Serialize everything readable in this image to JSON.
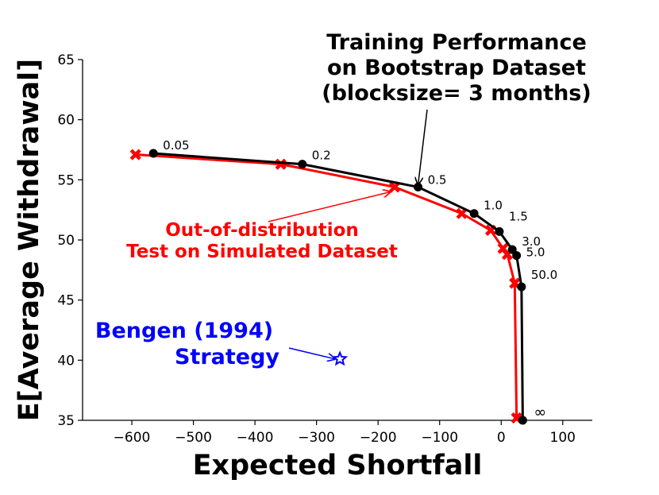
{
  "chart_data": {
    "type": "line",
    "xlabel": "Expected Shortfall",
    "ylabel": "E[Average Withdrawal]",
    "xlim": [
      -680,
      148
    ],
    "ylim": [
      35,
      65
    ],
    "xticks": [
      -600,
      -500,
      -400,
      -300,
      -200,
      -100,
      0,
      100
    ],
    "xtick_labels": [
      "−600",
      "−500",
      "−400",
      "−300",
      "−200",
      "−100",
      "0",
      "100"
    ],
    "yticks": [
      35,
      40,
      45,
      50,
      55,
      60,
      65
    ],
    "ytick_labels": [
      "35",
      "40",
      "45",
      "50",
      "55",
      "60",
      "65"
    ],
    "series": [
      {
        "name": "Training Performance on Bootstrap Dataset (blocksize= 3 months)",
        "color": "#000000",
        "marker": "circle",
        "x": [
          -565,
          -323,
          -135,
          -44,
          -3,
          18,
          25,
          33,
          35
        ],
        "y": [
          57.2,
          56.3,
          54.4,
          52.2,
          50.7,
          49.2,
          48.7,
          46.1,
          35.0
        ]
      },
      {
        "name": "Out-of-distribution Test on Simulated Dataset",
        "color": "#ff0000",
        "marker": "x",
        "x": [
          -594,
          -358,
          -173,
          -64,
          -17,
          3,
          10,
          22,
          25
        ],
        "y": [
          57.1,
          56.3,
          54.4,
          52.2,
          50.8,
          49.3,
          48.8,
          46.4,
          35.2
        ]
      }
    ],
    "point_labels": [
      {
        "text": "0.05",
        "x": -565,
        "y": 57.2
      },
      {
        "text": "0.2",
        "x": -323,
        "y": 56.3
      },
      {
        "text": "0.5",
        "x": -135,
        "y": 54.4
      },
      {
        "text": "1.0",
        "x": -44,
        "y": 52.2
      },
      {
        "text": "1.5",
        "x": -3,
        "y": 50.7
      },
      {
        "text": "3.0",
        "x": 18,
        "y": 49.2
      },
      {
        "text": "5.0",
        "x": 25,
        "y": 48.7
      },
      {
        "text": "50.0",
        "x": 33,
        "y": 46.1
      },
      {
        "text": "∞",
        "x": 35,
        "y": 35.0
      }
    ],
    "special_point": {
      "name": "Bengen (1994) Strategy",
      "x": -262,
      "y": 40.1,
      "color": "#0000ff",
      "marker": "star"
    },
    "annotations": [
      {
        "lines": [
          "Training Performance",
          "on Bootstrap Dataset",
          "(blocksize= 3 months)"
        ],
        "color": "#000000",
        "arrow_to": {
          "x": -135,
          "y": 54.6
        }
      },
      {
        "lines": [
          "Out-of-distribution",
          "Test on Simulated Dataset"
        ],
        "color": "#ff0000",
        "arrow_to": {
          "x": -180,
          "y": 54.0
        }
      },
      {
        "lines": [
          "Bengen (1994)",
          "Strategy"
        ],
        "color": "#0000ff",
        "arrow_to": {
          "x": -270,
          "y": 40.1
        }
      }
    ]
  }
}
